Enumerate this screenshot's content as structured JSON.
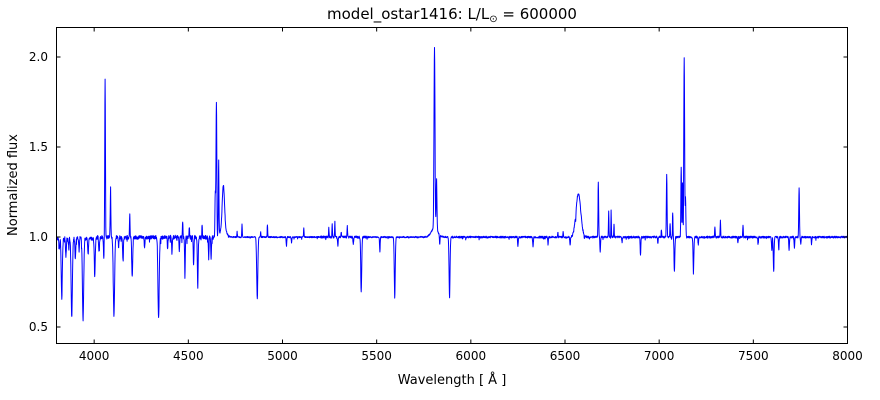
{
  "figure": {
    "title_pre": "model_ostar1416: L/L",
    "title_sub": "⊙",
    "title_post": " = 600000",
    "xlabel": "Wavelength [ Å ]",
    "ylabel": "Normalized flux",
    "background": "#ffffff",
    "spine_color": "#000000"
  },
  "chart_data": {
    "type": "line",
    "title": "model_ostar1416: L/L⊙ = 600000",
    "xlabel": "Wavelength [ Å ]",
    "ylabel": "Normalized flux",
    "series_color": "#0000ff",
    "grid": false,
    "legend": null,
    "xlim": [
      3800,
      8000
    ],
    "ylim": [
      0.41,
      2.16
    ],
    "xticks": [
      4000,
      4500,
      5000,
      5500,
      6000,
      6500,
      7000,
      7500,
      8000
    ],
    "xtick_labels": [
      "4000",
      "4500",
      "5000",
      "5500",
      "6000",
      "6500",
      "7000",
      "7500",
      "8000"
    ],
    "yticks": [
      0.5,
      1.0,
      1.5,
      2.0
    ],
    "ytick_labels": [
      "0.5",
      "1.0",
      "1.5",
      "2.0"
    ],
    "continuum_level": 1.0,
    "features": {
      "emission_lines": [
        {
          "wl": 4058,
          "peak": 1.88,
          "fwhm": 4
        },
        {
          "wl": 4087,
          "peak": 1.27,
          "fwhm": 4
        },
        {
          "wl": 4189,
          "peak": 1.13,
          "fwhm": 3.5
        },
        {
          "wl": 4470,
          "peak": 1.09,
          "fwhm": 3
        },
        {
          "wl": 4505,
          "peak": 1.06,
          "fwhm": 3
        },
        {
          "wl": 4573,
          "peak": 1.07,
          "fwhm": 3
        },
        {
          "wl": 4643,
          "peak": 1.25,
          "fwhm": 4
        },
        {
          "wl": 4649,
          "peak": 1.75,
          "fwhm": 5
        },
        {
          "wl": 4661,
          "peak": 1.42,
          "fwhm": 4
        },
        {
          "wl": 4686,
          "peak": 1.24,
          "fwhm": 14,
          "base_peak": 1.05,
          "base_fwhm": 34
        },
        {
          "wl": 4759,
          "peak": 1.03,
          "fwhm": 3
        },
        {
          "wl": 4785,
          "peak": 1.07,
          "fwhm": 3
        },
        {
          "wl": 4884,
          "peak": 1.03,
          "fwhm": 3
        },
        {
          "wl": 4920,
          "peak": 1.07,
          "fwhm": 3
        },
        {
          "wl": 5113,
          "peak": 1.05,
          "fwhm": 3
        },
        {
          "wl": 5246,
          "peak": 1.05,
          "fwhm": 3
        },
        {
          "wl": 5264,
          "peak": 1.07,
          "fwhm": 3
        },
        {
          "wl": 5278,
          "peak": 1.09,
          "fwhm": 3
        },
        {
          "wl": 5312,
          "peak": 1.03,
          "fwhm": 3
        },
        {
          "wl": 5344,
          "peak": 1.06,
          "fwhm": 3
        },
        {
          "wl": 5807,
          "peak": 2.0,
          "fwhm": 6,
          "base_peak": 1.05,
          "base_fwhm": 40
        },
        {
          "wl": 5818,
          "peak": 1.28,
          "fwhm": 5
        },
        {
          "wl": 6462,
          "peak": 1.03,
          "fwhm": 3
        },
        {
          "wl": 6490,
          "peak": 1.03,
          "fwhm": 3
        },
        {
          "wl": 6571,
          "peak": 1.24,
          "fwhm": 30
        },
        {
          "wl": 6677,
          "peak": 1.3,
          "fwhm": 4
        },
        {
          "wl": 6732,
          "peak": 1.14,
          "fwhm": 3
        },
        {
          "wl": 6745,
          "peak": 1.15,
          "fwhm": 3
        },
        {
          "wl": 6760,
          "peak": 1.07,
          "fwhm": 3
        },
        {
          "wl": 7012,
          "peak": 1.04,
          "fwhm": 3
        },
        {
          "wl": 7040,
          "peak": 1.35,
          "fwhm": 4
        },
        {
          "wl": 7058,
          "peak": 1.08,
          "fwhm": 3
        },
        {
          "wl": 7072,
          "peak": 1.15,
          "fwhm": 3
        },
        {
          "wl": 7117,
          "peak": 1.39,
          "fwhm": 4
        },
        {
          "wl": 7124,
          "peak": 1.3,
          "fwhm": 4
        },
        {
          "wl": 7133,
          "peak": 2.0,
          "fwhm": 5
        },
        {
          "wl": 7140,
          "peak": 1.22,
          "fwhm": 4
        },
        {
          "wl": 7296,
          "peak": 1.06,
          "fwhm": 3
        },
        {
          "wl": 7325,
          "peak": 1.09,
          "fwhm": 3
        },
        {
          "wl": 7445,
          "peak": 1.07,
          "fwhm": 3
        },
        {
          "wl": 7743,
          "peak": 1.28,
          "fwhm": 4
        }
      ],
      "absorption_lines": [
        {
          "wl": 3815,
          "min": 0.94,
          "fwhm": 5
        },
        {
          "wl": 3828,
          "min": 0.67,
          "fwhm": 7
        },
        {
          "wl": 3850,
          "min": 0.9,
          "fwhm": 5
        },
        {
          "wl": 3865,
          "min": 0.95,
          "fwhm": 4
        },
        {
          "wl": 3881,
          "min": 0.56,
          "fwhm": 8
        },
        {
          "wl": 3900,
          "min": 0.88,
          "fwhm": 5
        },
        {
          "wl": 3920,
          "min": 0.93,
          "fwhm": 4
        },
        {
          "wl": 3941,
          "min": 0.55,
          "fwhm": 8
        },
        {
          "wl": 3968,
          "min": 0.91,
          "fwhm": 5
        },
        {
          "wl": 4003,
          "min": 0.79,
          "fwhm": 6
        },
        {
          "wl": 4026,
          "min": 0.92,
          "fwhm": 5
        },
        {
          "wl": 4051,
          "min": 0.88,
          "fwhm": 4
        },
        {
          "wl": 4105,
          "min": 0.56,
          "fwhm": 8
        },
        {
          "wl": 4130,
          "min": 0.94,
          "fwhm": 4
        },
        {
          "wl": 4153,
          "min": 0.87,
          "fwhm": 5
        },
        {
          "wl": 4202,
          "min": 0.78,
          "fwhm": 6
        },
        {
          "wl": 4268,
          "min": 0.95,
          "fwhm": 4
        },
        {
          "wl": 4342,
          "min": 0.55,
          "fwhm": 8
        },
        {
          "wl": 4390,
          "min": 0.94,
          "fwhm": 4
        },
        {
          "wl": 4413,
          "min": 0.91,
          "fwhm": 4
        },
        {
          "wl": 4452,
          "min": 0.93,
          "fwhm": 4
        },
        {
          "wl": 4482,
          "min": 0.77,
          "fwhm": 4
        },
        {
          "wl": 4528,
          "min": 0.84,
          "fwhm": 4
        },
        {
          "wl": 4550,
          "min": 0.72,
          "fwhm": 5
        },
        {
          "wl": 4608,
          "min": 0.9,
          "fwhm": 4
        },
        {
          "wl": 4621,
          "min": 0.88,
          "fwhm": 4
        },
        {
          "wl": 4866,
          "min": 0.66,
          "fwhm": 7
        },
        {
          "wl": 5021,
          "min": 0.95,
          "fwhm": 4
        },
        {
          "wl": 5048,
          "min": 0.97,
          "fwhm": 4
        },
        {
          "wl": 5294,
          "min": 0.95,
          "fwhm": 4
        },
        {
          "wl": 5376,
          "min": 0.96,
          "fwhm": 4
        },
        {
          "wl": 5418,
          "min": 0.7,
          "fwhm": 6
        },
        {
          "wl": 5517,
          "min": 0.92,
          "fwhm": 4
        },
        {
          "wl": 5596,
          "min": 0.66,
          "fwhm": 6
        },
        {
          "wl": 5835,
          "min": 0.95,
          "fwhm": 4
        },
        {
          "wl": 5887,
          "min": 0.66,
          "fwhm": 6
        },
        {
          "wl": 6250,
          "min": 0.95,
          "fwhm": 4
        },
        {
          "wl": 6330,
          "min": 0.95,
          "fwhm": 4
        },
        {
          "wl": 6410,
          "min": 0.96,
          "fwhm": 3.5
        },
        {
          "wl": 6527,
          "min": 0.955,
          "fwhm": 4
        },
        {
          "wl": 6557,
          "min": 0.96,
          "fwhm": 3
        },
        {
          "wl": 6603,
          "min": 0.98,
          "fwhm": 2.5
        },
        {
          "wl": 6687,
          "min": 0.92,
          "fwhm": 4
        },
        {
          "wl": 6803,
          "min": 0.97,
          "fwhm": 3.5
        },
        {
          "wl": 6901,
          "min": 0.9,
          "fwhm": 4
        },
        {
          "wl": 6993,
          "min": 0.96,
          "fwhm": 3.5
        },
        {
          "wl": 7081,
          "min": 0.81,
          "fwhm": 5
        },
        {
          "wl": 7182,
          "min": 0.8,
          "fwhm": 5
        },
        {
          "wl": 7208,
          "min": 0.96,
          "fwhm": 3.5
        },
        {
          "wl": 7418,
          "min": 0.97,
          "fwhm": 3.5
        },
        {
          "wl": 7525,
          "min": 0.96,
          "fwhm": 3.5
        },
        {
          "wl": 7598,
          "min": 0.93,
          "fwhm": 4
        },
        {
          "wl": 7608,
          "min": 0.81,
          "fwhm": 5
        },
        {
          "wl": 7635,
          "min": 0.93,
          "fwhm": 4
        },
        {
          "wl": 7690,
          "min": 0.93,
          "fwhm": 4
        },
        {
          "wl": 7718,
          "min": 0.94,
          "fwhm": 3.5
        },
        {
          "wl": 7752,
          "min": 0.96,
          "fwhm": 3.5
        },
        {
          "wl": 7809,
          "min": 0.96,
          "fwhm": 3.5
        }
      ]
    },
    "noise": {
      "seed": 20240417,
      "regions": [
        {
          "from": 3800,
          "to": 4660,
          "amp": 0.01,
          "dip_bias": 0.004,
          "spike_p": 0.05,
          "spike_max": 0.035
        },
        {
          "from": 4660,
          "to": 5200,
          "amp": 0.0035,
          "dip_bias": 0.001,
          "spike_p": 0.02,
          "spike_max": 0.012
        },
        {
          "from": 5200,
          "to": 5460,
          "amp": 0.006,
          "dip_bias": 0.001,
          "spike_p": 0.03,
          "spike_max": 0.015
        },
        {
          "from": 5460,
          "to": 5900,
          "amp": 0.0035,
          "dip_bias": 0.001,
          "spike_p": 0.02,
          "spike_max": 0.012
        },
        {
          "from": 5900,
          "to": 6540,
          "amp": 0.005,
          "dip_bias": 0.001,
          "spike_p": 0.03,
          "spike_max": 0.014
        },
        {
          "from": 6540,
          "to": 7560,
          "amp": 0.0055,
          "dip_bias": 0.001,
          "spike_p": 0.03,
          "spike_max": 0.016
        },
        {
          "from": 7560,
          "to": 8001,
          "amp": 0.005,
          "dip_bias": 0.001,
          "spike_p": 0.03,
          "spike_max": 0.014
        }
      ]
    }
  }
}
